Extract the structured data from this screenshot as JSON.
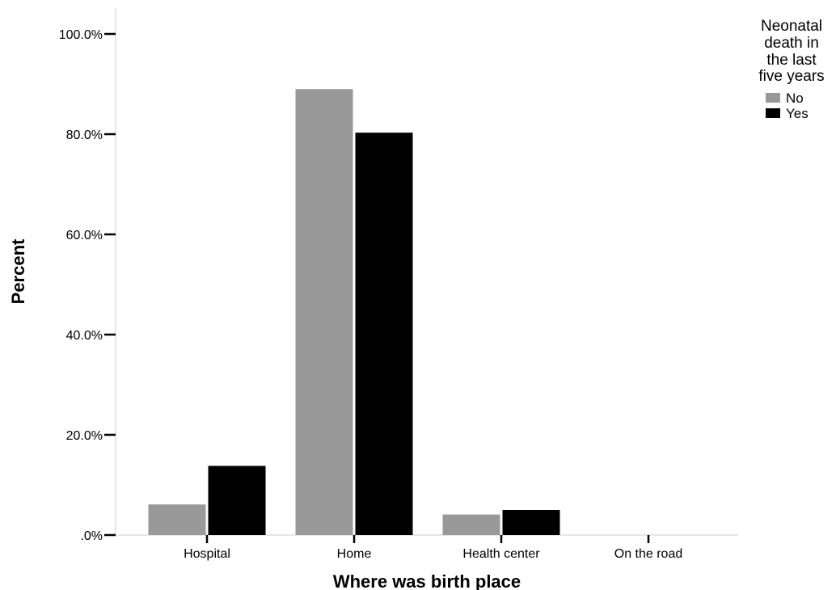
{
  "chart_data": {
    "type": "bar",
    "title": "",
    "xlabel": "Where was birth place",
    "ylabel": "Percent",
    "categories": [
      "Hospital",
      "Home",
      "Health center",
      "On the road"
    ],
    "series": [
      {
        "name": "No",
        "color": "#999999",
        "values": [
          6.1,
          89.0,
          4.1,
          0.0
        ]
      },
      {
        "name": "Yes",
        "color": "#000000",
        "values": [
          13.8,
          80.3,
          5.0,
          0.0
        ]
      }
    ],
    "ylim": [
      0,
      100
    ],
    "yticks": [
      0,
      20,
      40,
      60,
      80,
      100
    ],
    "ytick_labels": [
      ".0%",
      "20.0%",
      "40.0%",
      "60.0%",
      "80.0%",
      "100.0%"
    ],
    "grid": false,
    "legend": {
      "title_lines": [
        "Neonatal",
        "death in",
        "the last",
        "five years"
      ],
      "placement": "top-right"
    }
  }
}
